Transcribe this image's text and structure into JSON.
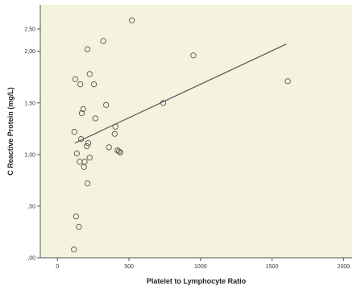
{
  "chart_data": {
    "type": "scatter",
    "title": "",
    "xlabel": "Platelet to Lymphocyte Ratio",
    "ylabel": "C Reactive Protein (mg/L)",
    "xlim": [
      -120,
      2060
    ],
    "ylim": [
      0,
      2.45
    ],
    "x_ticks": [
      0,
      500,
      1000,
      1500,
      2000
    ],
    "x_tick_labels": [
      "0",
      "500",
      "1000",
      "1500",
      "2000"
    ],
    "y_ticks": [
      0,
      0.5,
      1.0,
      1.5,
      2.0
    ],
    "y_tick_labels": [
      ",00",
      ",50",
      "1,00",
      "1,50",
      "2,00"
    ],
    "y_extra_tick": 2.5,
    "y_extra_tick_label": "2,50",
    "grid": false,
    "legend": "none",
    "colors": {
      "plot_background": "#f3f3de",
      "marker_edge": "#555555",
      "fit_line": "#555555",
      "axis": "#555555"
    },
    "points": [
      {
        "x": 115,
        "y": 0.08
      },
      {
        "x": 118,
        "y": 1.22
      },
      {
        "x": 125,
        "y": 1.73
      },
      {
        "x": 130,
        "y": 0.4
      },
      {
        "x": 135,
        "y": 1.01
      },
      {
        "x": 150,
        "y": 0.3
      },
      {
        "x": 155,
        "y": 0.93
      },
      {
        "x": 160,
        "y": 1.68
      },
      {
        "x": 165,
        "y": 1.15
      },
      {
        "x": 170,
        "y": 1.4
      },
      {
        "x": 180,
        "y": 1.44
      },
      {
        "x": 185,
        "y": 0.88
      },
      {
        "x": 190,
        "y": 0.93
      },
      {
        "x": 205,
        "y": 1.08
      },
      {
        "x": 210,
        "y": 0.72
      },
      {
        "x": 210,
        "y": 2.02
      },
      {
        "x": 215,
        "y": 1.11
      },
      {
        "x": 225,
        "y": 0.97
      },
      {
        "x": 225,
        "y": 1.78
      },
      {
        "x": 255,
        "y": 1.68
      },
      {
        "x": 265,
        "y": 1.35
      },
      {
        "x": 320,
        "y": 2.1
      },
      {
        "x": 340,
        "y": 1.48
      },
      {
        "x": 360,
        "y": 1.07
      },
      {
        "x": 400,
        "y": 1.2
      },
      {
        "x": 405,
        "y": 1.27
      },
      {
        "x": 420,
        "y": 1.04
      },
      {
        "x": 430,
        "y": 1.03
      },
      {
        "x": 440,
        "y": 1.02
      },
      {
        "x": 520,
        "y": 2.3
      },
      {
        "x": 740,
        "y": 1.5
      },
      {
        "x": 950,
        "y": 1.96
      },
      {
        "x": 1610,
        "y": 1.71
      }
    ],
    "fit_line": {
      "x": [
        120,
        1600
      ],
      "y": [
        1.11,
        2.07
      ]
    }
  }
}
